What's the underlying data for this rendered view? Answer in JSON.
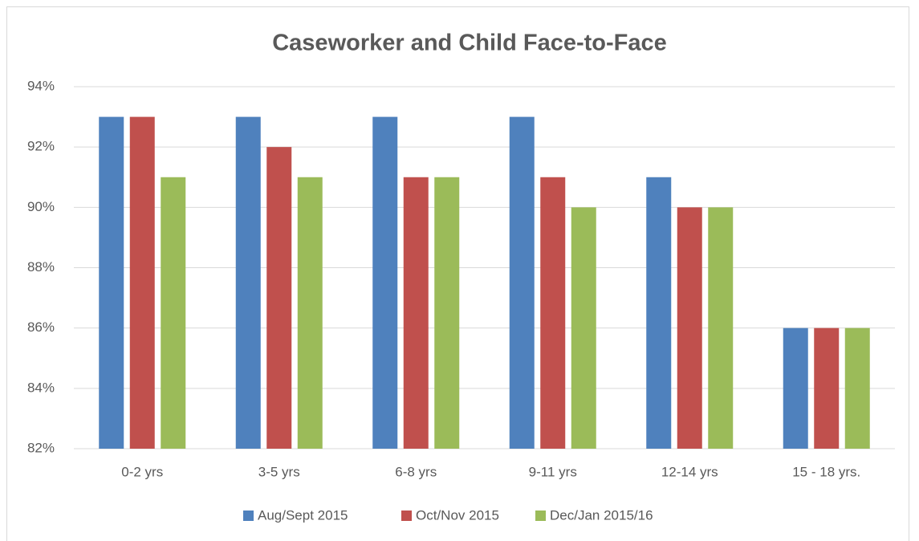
{
  "chart_data": {
    "type": "bar",
    "title": "Caseworker and Child Face-to-Face",
    "categories": [
      "0-2 yrs",
      "3-5 yrs",
      "6-8 yrs",
      "9-11 yrs",
      "12-14 yrs",
      "15 - 18 yrs."
    ],
    "series": [
      {
        "name": "Aug/Sept 2015",
        "color": "#4f81bd",
        "values": [
          93,
          93,
          93,
          93,
          91,
          86
        ]
      },
      {
        "name": "Oct/Nov 2015",
        "color": "#c0504d",
        "values": [
          93,
          92,
          91,
          91,
          90,
          86
        ]
      },
      {
        "name": "Dec/Jan 2015/16",
        "color": "#9bbb59",
        "values": [
          91,
          91,
          91,
          90,
          90,
          86
        ]
      }
    ],
    "ylim": [
      82,
      94
    ],
    "yticks": [
      {
        "value": 82,
        "label": "82%"
      },
      {
        "value": 84,
        "label": "84%"
      },
      {
        "value": 86,
        "label": "86%"
      },
      {
        "value": 88,
        "label": "88%"
      },
      {
        "value": 90,
        "label": "90%"
      },
      {
        "value": 92,
        "label": "92%"
      },
      {
        "value": 94,
        "label": "94%"
      }
    ],
    "grid": true,
    "legend": "bottom"
  }
}
